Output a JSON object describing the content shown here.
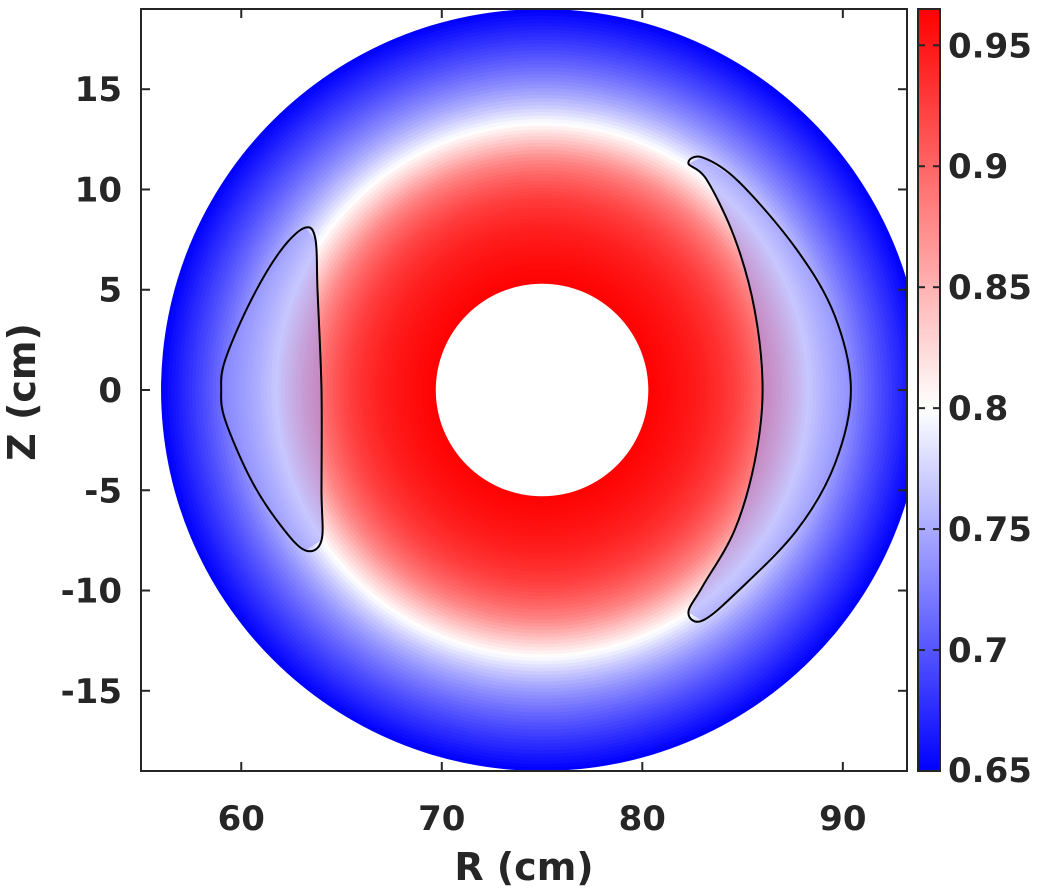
{
  "chart_data": {
    "type": "heatmap",
    "subtype": "poloidal cross-section colormap",
    "xlabel": "R (cm)",
    "ylabel": "Z (cm)",
    "xlim": [
      55,
      93.2
    ],
    "ylim": [
      -19,
      19
    ],
    "x_ticks": [
      60,
      70,
      80,
      90
    ],
    "x_tick_labels": [
      "60",
      "70",
      "80",
      "90"
    ],
    "y_ticks": [
      15,
      10,
      5,
      0,
      -5,
      -10,
      -15
    ],
    "y_tick_labels": [
      "15",
      "10",
      "5",
      "0",
      "-5",
      "-10",
      "-15"
    ],
    "grid": false,
    "colorbar": {
      "location": "right",
      "range": [
        0.65,
        0.965
      ],
      "ticks": [
        0.95,
        0.9,
        0.85,
        0.8,
        0.75,
        0.7,
        0.65
      ],
      "tick_labels": [
        "0.95",
        "0.9",
        "0.85",
        "0.8",
        "0.75",
        "0.7",
        "0.65"
      ],
      "colormap": [
        "#0000ff",
        "#ffffff",
        "#ff0000"
      ]
    },
    "domain": {
      "center": [
        75,
        0
      ],
      "outer_radius": 19,
      "inner_radius": 5.3
    },
    "field": {
      "inner_value": 0.965,
      "edge_value": 0.65,
      "plateau_edge_radius": 12,
      "transition_width": 1.2,
      "island_value": 0.74
    },
    "contours": [
      {
        "name": "",
        "color": "#000000",
        "points": [
          [
            64,
            0
          ],
          [
            63.8,
            5
          ],
          [
            63.7,
            7.5
          ],
          [
            63.2,
            8.1
          ],
          [
            62,
            7
          ],
          [
            60.5,
            4.5
          ],
          [
            59.2,
            1.5
          ],
          [
            59,
            0
          ],
          [
            59.2,
            -1.5
          ],
          [
            60.5,
            -4.5
          ],
          [
            62,
            -6.8
          ],
          [
            63.2,
            -8
          ],
          [
            64,
            -7.5
          ],
          [
            64,
            -5
          ],
          [
            64,
            0
          ]
        ]
      },
      {
        "name": "",
        "color": "#000000",
        "points": [
          [
            86,
            0
          ],
          [
            85.6,
            4
          ],
          [
            84.6,
            7.6
          ],
          [
            83.2,
            10.5
          ],
          [
            82.3,
            11.3
          ],
          [
            83,
            11.6
          ],
          [
            84.8,
            10.4
          ],
          [
            87.7,
            7
          ],
          [
            89.6,
            3.7
          ],
          [
            90.4,
            0
          ],
          [
            89.6,
            -3.7
          ],
          [
            87.7,
            -7
          ],
          [
            84.8,
            -10
          ],
          [
            83,
            -11.5
          ],
          [
            82.3,
            -11.1
          ],
          [
            83,
            -9.8
          ],
          [
            84.6,
            -7
          ],
          [
            85.6,
            -3.6
          ],
          [
            86,
            0
          ]
        ]
      }
    ]
  }
}
